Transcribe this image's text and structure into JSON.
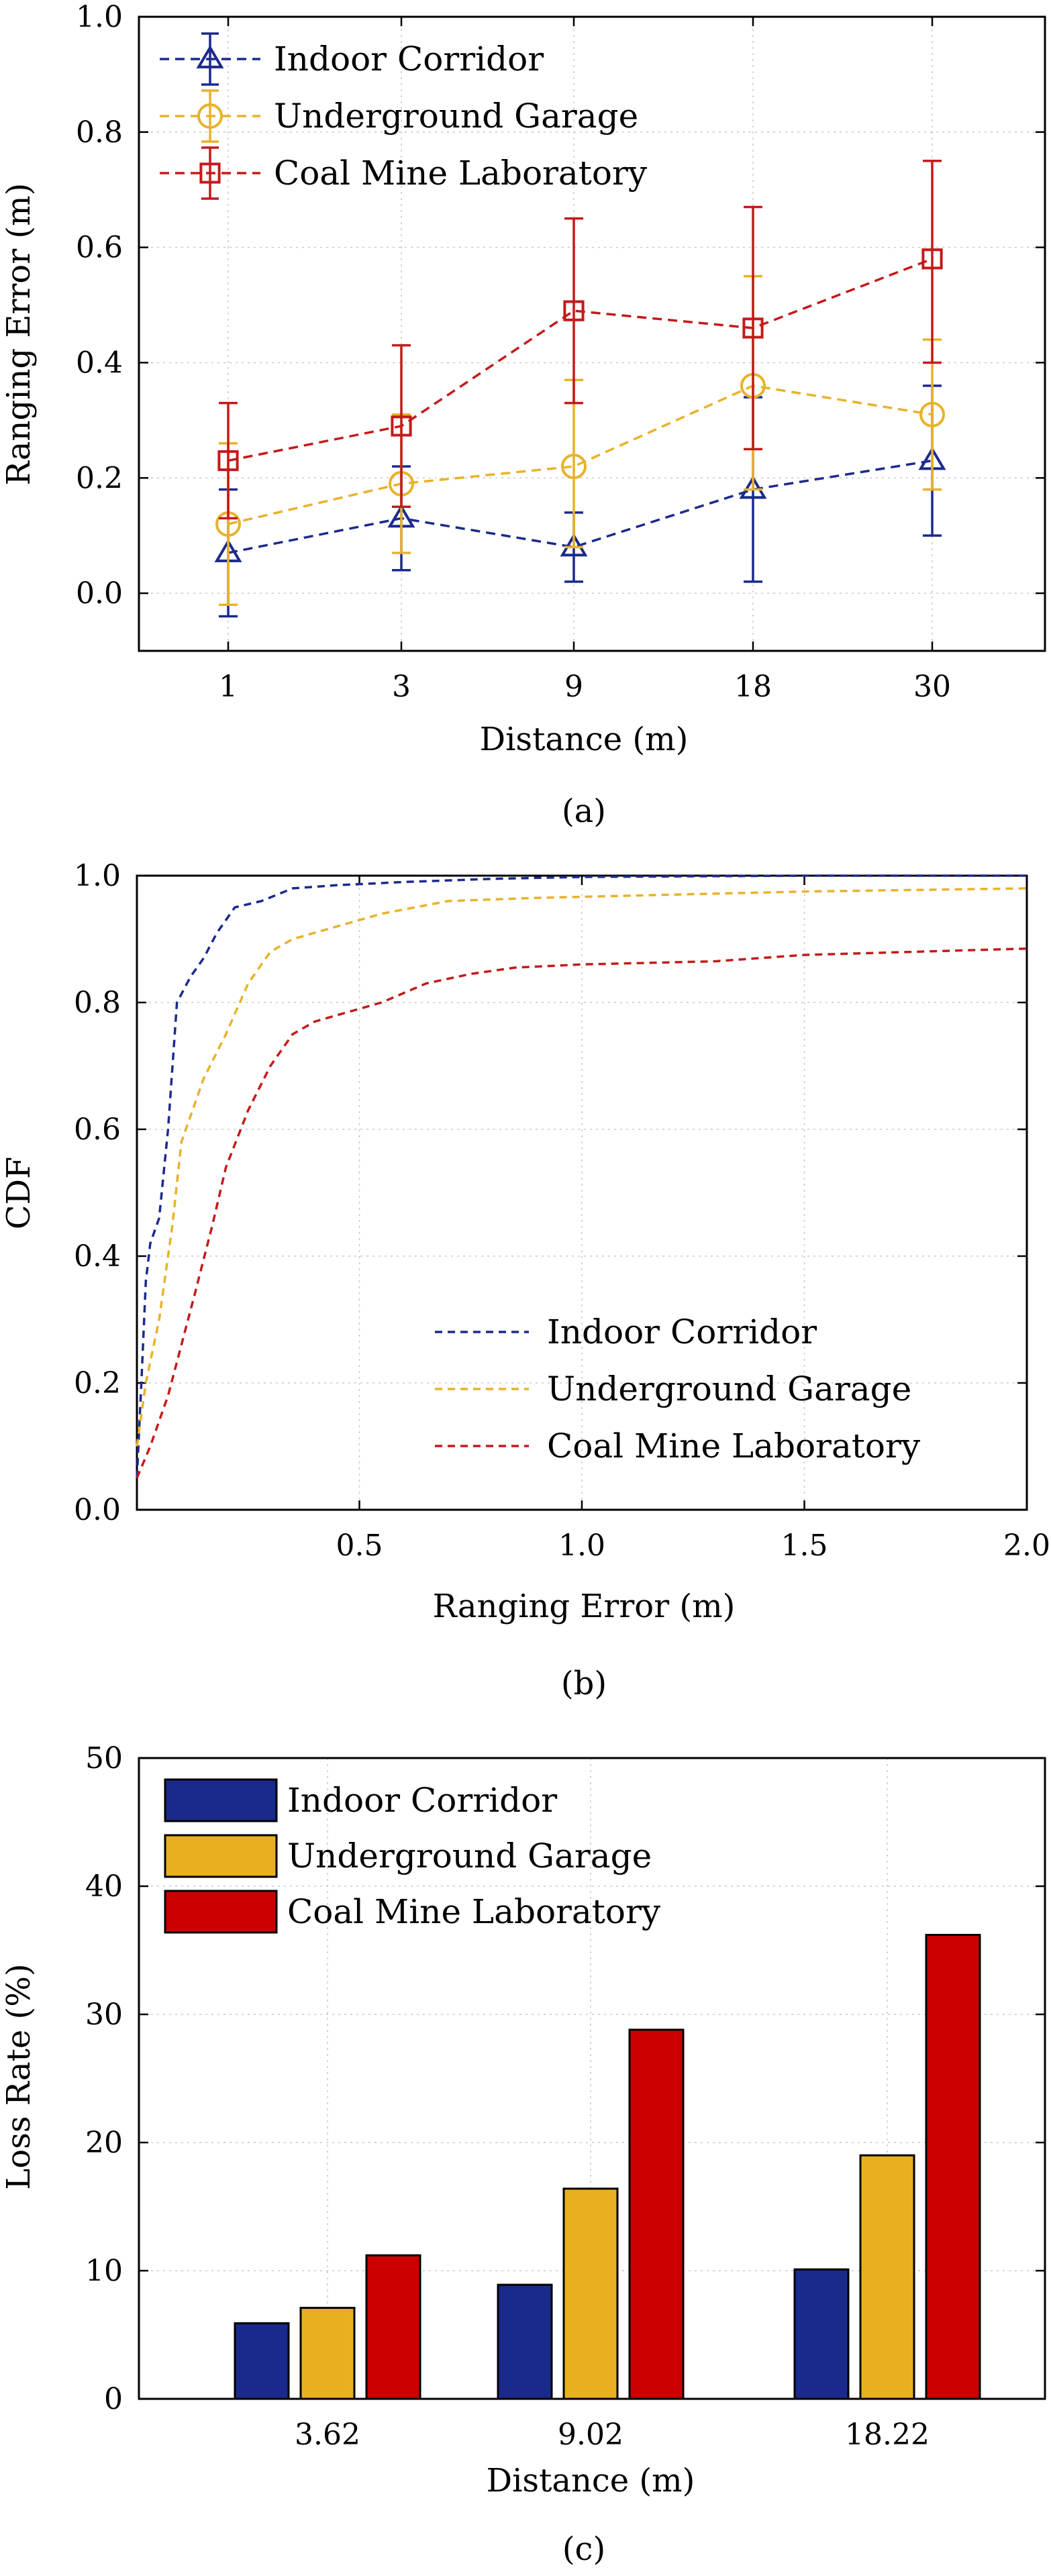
{
  "chart_data": [
    {
      "type": "line",
      "caption": "(a)",
      "xlabel": "Distance (m)",
      "ylabel": "Ranging Error (m)",
      "categories": [
        "1",
        "3",
        "9",
        "18",
        "30"
      ],
      "ylim": [
        -0.1,
        1.0
      ],
      "yticks": [
        "0.0",
        "0.2",
        "0.4",
        "0.6",
        "0.8",
        "1.0"
      ],
      "grid": true,
      "legend_position": "top-left",
      "series": [
        {
          "name": "Indoor Corridor",
          "color": "#1b2a8c",
          "marker": "triangle",
          "values": [
            0.07,
            0.13,
            0.08,
            0.18,
            0.23
          ],
          "err_low": [
            -0.04,
            0.04,
            0.02,
            0.02,
            0.1
          ],
          "err_high": [
            0.18,
            0.22,
            0.14,
            0.34,
            0.36
          ]
        },
        {
          "name": "Underground Garage",
          "color": "#e8b22a",
          "marker": "circle",
          "values": [
            0.12,
            0.19,
            0.22,
            0.36,
            0.31
          ],
          "err_low": [
            -0.02,
            0.07,
            0.08,
            0.18,
            0.18
          ],
          "err_high": [
            0.26,
            0.31,
            0.37,
            0.55,
            0.44
          ]
        },
        {
          "name": "Coal Mine Laboratory",
          "color": "#c41a1a",
          "marker": "square",
          "values": [
            0.23,
            0.29,
            0.49,
            0.46,
            0.58
          ],
          "err_low": [
            0.13,
            0.15,
            0.33,
            0.25,
            0.4
          ],
          "err_high": [
            0.33,
            0.43,
            0.65,
            0.67,
            0.75
          ]
        }
      ]
    },
    {
      "type": "line",
      "caption": "(b)",
      "xlabel": "Ranging Error (m)",
      "ylabel": "CDF",
      "xlim": [
        0,
        2.0
      ],
      "ylim": [
        0,
        1.0
      ],
      "xticks": [
        "0.5",
        "1.0",
        "1.5",
        "2.0"
      ],
      "yticks": [
        "0.0",
        "0.2",
        "0.4",
        "0.6",
        "0.8",
        "1.0"
      ],
      "grid": true,
      "legend_position": "bottom-right",
      "series": [
        {
          "name": "Indoor Corridor",
          "color": "#1b2a8c",
          "x": [
            0,
            0.01,
            0.02,
            0.03,
            0.05,
            0.07,
            0.09,
            0.12,
            0.15,
            0.18,
            0.22,
            0.28,
            0.35,
            0.45,
            0.6,
            0.8,
            1.0,
            1.5,
            2.0
          ],
          "y": [
            0.05,
            0.2,
            0.36,
            0.42,
            0.46,
            0.6,
            0.8,
            0.84,
            0.87,
            0.91,
            0.95,
            0.96,
            0.98,
            0.985,
            0.99,
            0.995,
            0.998,
            1.0,
            1.0
          ]
        },
        {
          "name": "Underground Garage",
          "color": "#e8b22a",
          "x": [
            0,
            0.02,
            0.05,
            0.08,
            0.1,
            0.12,
            0.15,
            0.2,
            0.25,
            0.3,
            0.35,
            0.45,
            0.55,
            0.7,
            0.9,
            1.2,
            1.5,
            2.0
          ],
          "y": [
            0.1,
            0.2,
            0.3,
            0.45,
            0.58,
            0.62,
            0.68,
            0.75,
            0.83,
            0.88,
            0.9,
            0.92,
            0.94,
            0.96,
            0.965,
            0.97,
            0.975,
            0.98
          ]
        },
        {
          "name": "Coal Mine Laboratory",
          "color": "#c41a1a",
          "x": [
            0,
            0.03,
            0.07,
            0.1,
            0.13,
            0.17,
            0.2,
            0.25,
            0.3,
            0.35,
            0.4,
            0.45,
            0.55,
            0.65,
            0.75,
            0.85,
            1.0,
            1.3,
            1.5,
            2.0
          ],
          "y": [
            0.05,
            0.1,
            0.18,
            0.26,
            0.34,
            0.45,
            0.54,
            0.63,
            0.7,
            0.75,
            0.77,
            0.78,
            0.8,
            0.83,
            0.845,
            0.855,
            0.86,
            0.865,
            0.875,
            0.885
          ]
        }
      ]
    },
    {
      "type": "bar",
      "caption": "(c)",
      "xlabel": "Distance (m)",
      "ylabel": "Loss Rate (%)",
      "categories": [
        "3.62",
        "9.02",
        "18.22"
      ],
      "ylim": [
        0,
        50
      ],
      "yticks": [
        "0",
        "10",
        "20",
        "30",
        "40",
        "50"
      ],
      "grid": true,
      "legend_position": "top-left",
      "series": [
        {
          "name": "Indoor Corridor",
          "color": "#1a2a8c",
          "values": [
            5.9,
            8.9,
            10.1
          ]
        },
        {
          "name": "Underground Garage",
          "color": "#e8b020",
          "values": [
            7.1,
            16.4,
            19.0
          ]
        },
        {
          "name": "Coal Mine Laboratory",
          "color": "#cc0000",
          "values": [
            11.2,
            28.8,
            36.2
          ]
        }
      ]
    }
  ]
}
